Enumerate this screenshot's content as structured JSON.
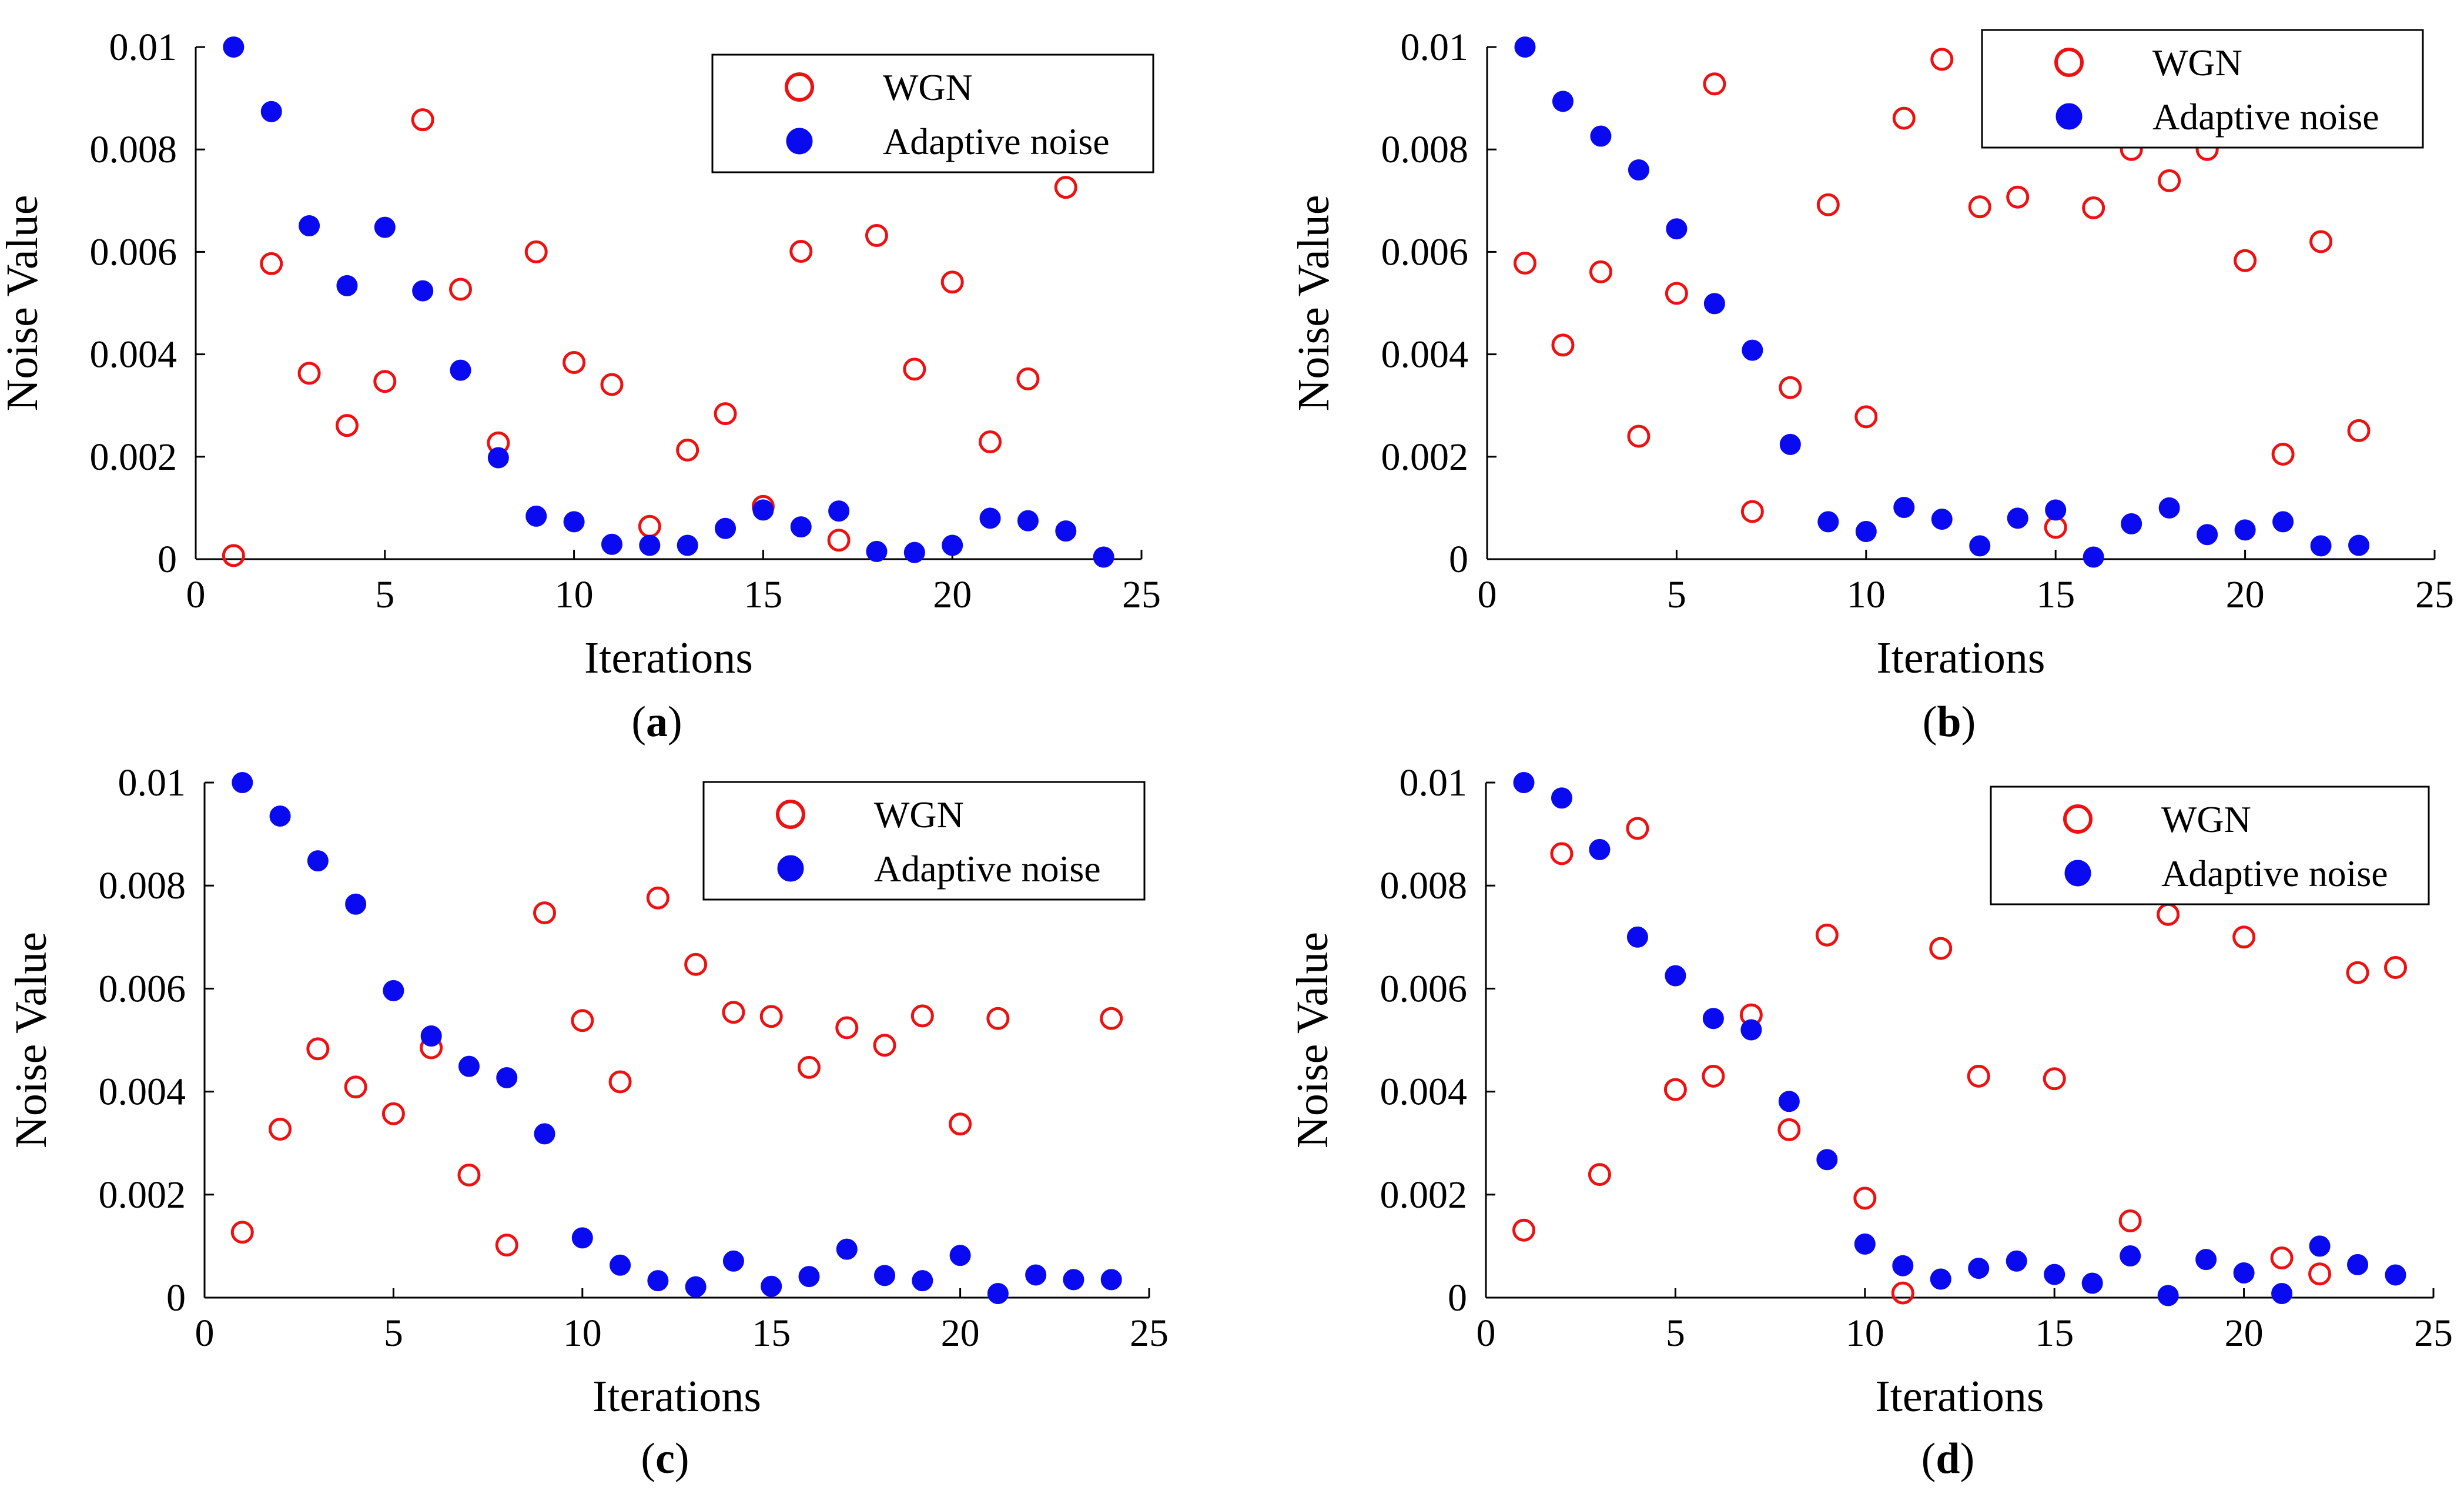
{
  "colors": {
    "wgn": "#ee1111",
    "adaptive": "#0a0af0",
    "axis": "#000000"
  },
  "chart_data": [
    {
      "panel": "a",
      "caption_open": "(",
      "caption_letter": "a",
      "caption_close": ")",
      "type": "scatter",
      "xlabel": "Iterations",
      "ylabel": "Noise Value",
      "xlim": [
        0,
        25
      ],
      "ylim": [
        0,
        0.01
      ],
      "xticks": [
        "0",
        "5",
        "10",
        "15",
        "20",
        "25"
      ],
      "yticks": [
        "0",
        "0.002",
        "0.004",
        "0.006",
        "0.008",
        "0.01"
      ],
      "legend_position": "top-right",
      "series": [
        {
          "name": "WGN",
          "marker": "open-circle",
          "x": [
            1,
            2,
            3,
            4,
            5,
            6,
            7,
            8,
            9,
            10,
            11,
            12,
            13,
            14,
            15,
            16,
            17,
            18,
            19,
            20,
            21,
            22,
            23
          ],
          "y": [
            7e-05,
            0.00577,
            0.00363,
            0.00261,
            0.00347,
            0.00858,
            0.00527,
            0.00227,
            0.006,
            0.00384,
            0.00341,
            0.00064,
            0.00213,
            0.00284,
            0.00103,
            0.00601,
            0.00037,
            0.00632,
            0.00371,
            0.00541,
            0.00229,
            0.00352,
            0.00726
          ]
        },
        {
          "name": "Adaptive noise",
          "marker": "filled-circle",
          "x": [
            1,
            2,
            3,
            4,
            5,
            6,
            7,
            8,
            9,
            10,
            11,
            12,
            13,
            14,
            15,
            16,
            17,
            18,
            19,
            20,
            21,
            22,
            23,
            24
          ],
          "y": [
            0.01,
            0.00874,
            0.00651,
            0.00534,
            0.00648,
            0.00524,
            0.00369,
            0.00198,
            0.00084,
            0.00073,
            0.00029,
            0.00027,
            0.00027,
            0.0006,
            0.00096,
            0.00063,
            0.00094,
            0.00015,
            0.00013,
            0.00027,
            0.0008,
            0.00075,
            0.00055,
            4e-05
          ]
        }
      ]
    },
    {
      "panel": "b",
      "caption_open": "(",
      "caption_letter": "b",
      "caption_close": ")",
      "type": "scatter",
      "xlabel": "Iterations",
      "ylabel": "Noise Value",
      "xlim": [
        0,
        25
      ],
      "ylim": [
        0,
        0.01
      ],
      "xticks": [
        "0",
        "5",
        "10",
        "15",
        "20",
        "25"
      ],
      "yticks": [
        "0",
        "0.002",
        "0.004",
        "0.006",
        "0.008",
        "0.01"
      ],
      "legend_position": "top-right",
      "series": [
        {
          "name": "WGN",
          "marker": "open-circle",
          "x": [
            1,
            2,
            3,
            4,
            5,
            6,
            7,
            8,
            9,
            10,
            11,
            12,
            13,
            14,
            15,
            16,
            17,
            18,
            19,
            20,
            21,
            22,
            23
          ],
          "y": [
            0.00578,
            0.00418,
            0.00561,
            0.0024,
            0.00519,
            0.00928,
            0.00093,
            0.00335,
            0.00692,
            0.00278,
            0.00861,
            0.00976,
            0.00688,
            0.00707,
            0.00062,
            0.00686,
            0.008,
            0.00739,
            0.008,
            0.00583,
            0.00205,
            0.0062,
            0.00251
          ]
        },
        {
          "name": "Adaptive noise",
          "marker": "filled-circle",
          "x": [
            1,
            2,
            3,
            4,
            5,
            6,
            7,
            8,
            9,
            10,
            11,
            12,
            13,
            14,
            15,
            16,
            17,
            18,
            19,
            20,
            21,
            22,
            23
          ],
          "y": [
            0.01,
            0.00894,
            0.00826,
            0.0076,
            0.00645,
            0.00499,
            0.00408,
            0.00224,
            0.00073,
            0.00054,
            0.00101,
            0.00078,
            0.00026,
            0.0008,
            0.00096,
            4e-05,
            0.00069,
            0.001,
            0.00048,
            0.00057,
            0.00073,
            0.00026,
            0.00027
          ]
        }
      ]
    },
    {
      "panel": "c",
      "caption_open": "(",
      "caption_letter": "c",
      "caption_close": ")",
      "type": "scatter",
      "xlabel": "Iterations",
      "ylabel": "Noise Value",
      "xlim": [
        0,
        25
      ],
      "ylim": [
        0,
        0.01
      ],
      "xticks": [
        "0",
        "5",
        "10",
        "15",
        "20",
        "25"
      ],
      "yticks": [
        "0",
        "0.002",
        "0.004",
        "0.006",
        "0.008",
        "0.01"
      ],
      "legend_position": "top-right",
      "series": [
        {
          "name": "WGN",
          "marker": "open-circle",
          "x": [
            1,
            2,
            3,
            4,
            5,
            6,
            7,
            8,
            9,
            10,
            11,
            12,
            13,
            14,
            15,
            16,
            17,
            18,
            19,
            20,
            21,
            24
          ],
          "y": [
            0.00127,
            0.00327,
            0.00483,
            0.00409,
            0.00357,
            0.00485,
            0.00238,
            0.00102,
            0.00747,
            0.00538,
            0.00419,
            0.00776,
            0.00647,
            0.00554,
            0.00546,
            0.00447,
            0.00524,
            0.0049,
            0.00547,
            0.00337,
            0.00542,
            0.00542
          ]
        },
        {
          "name": "Adaptive noise",
          "marker": "filled-circle",
          "x": [
            1,
            2,
            3,
            4,
            5,
            6,
            7,
            8,
            9,
            10,
            11,
            12,
            13,
            14,
            15,
            16,
            17,
            18,
            19,
            20,
            21,
            22,
            23,
            24
          ],
          "y": [
            0.01,
            0.00935,
            0.00848,
            0.00764,
            0.00596,
            0.00508,
            0.00449,
            0.00427,
            0.00318,
            0.00116,
            0.00063,
            0.00033,
            0.00021,
            0.00071,
            0.00022,
            0.00041,
            0.00094,
            0.00043,
            0.00033,
            0.00082,
            8e-05,
            0.00044,
            0.00035,
            0.00035
          ]
        }
      ]
    },
    {
      "panel": "d",
      "caption_open": "(",
      "caption_letter": "d",
      "caption_close": ")",
      "type": "scatter",
      "xlabel": "Iterations",
      "ylabel": "Noise Value",
      "xlim": [
        0,
        25
      ],
      "ylim": [
        0,
        0.01
      ],
      "xticks": [
        "0",
        "5",
        "10",
        "15",
        "20",
        "25"
      ],
      "yticks": [
        "0",
        "0.002",
        "0.004",
        "0.006",
        "0.008",
        "0.01"
      ],
      "legend_position": "top-right",
      "series": [
        {
          "name": "WGN",
          "marker": "open-circle",
          "x": [
            1,
            2,
            3,
            4,
            5,
            6,
            7,
            8,
            9,
            10,
            11,
            12,
            13,
            15,
            17,
            18,
            20,
            21,
            22,
            23,
            24
          ],
          "y": [
            0.00131,
            0.00862,
            0.00239,
            0.00911,
            0.00404,
            0.0043,
            0.00549,
            0.00326,
            0.00704,
            0.00193,
            9e-05,
            0.00678,
            0.0043,
            0.00425,
            0.00149,
            0.00744,
            0.007,
            0.00077,
            0.00046,
            0.00631,
            0.00641
          ]
        },
        {
          "name": "Adaptive noise",
          "marker": "filled-circle",
          "x": [
            1,
            2,
            3,
            4,
            5,
            6,
            7,
            8,
            9,
            10,
            11,
            12,
            13,
            14,
            15,
            16,
            17,
            18,
            19,
            20,
            21,
            22,
            23,
            24
          ],
          "y": [
            0.01,
            0.0097,
            0.0087,
            0.007,
            0.00625,
            0.00542,
            0.0052,
            0.00381,
            0.00268,
            0.00104,
            0.00062,
            0.00036,
            0.00057,
            0.00071,
            0.00045,
            0.00028,
            0.00081,
            4e-05,
            0.00074,
            0.00048,
            8e-05,
            0.001,
            0.00064,
            0.00044
          ]
        }
      ]
    }
  ]
}
